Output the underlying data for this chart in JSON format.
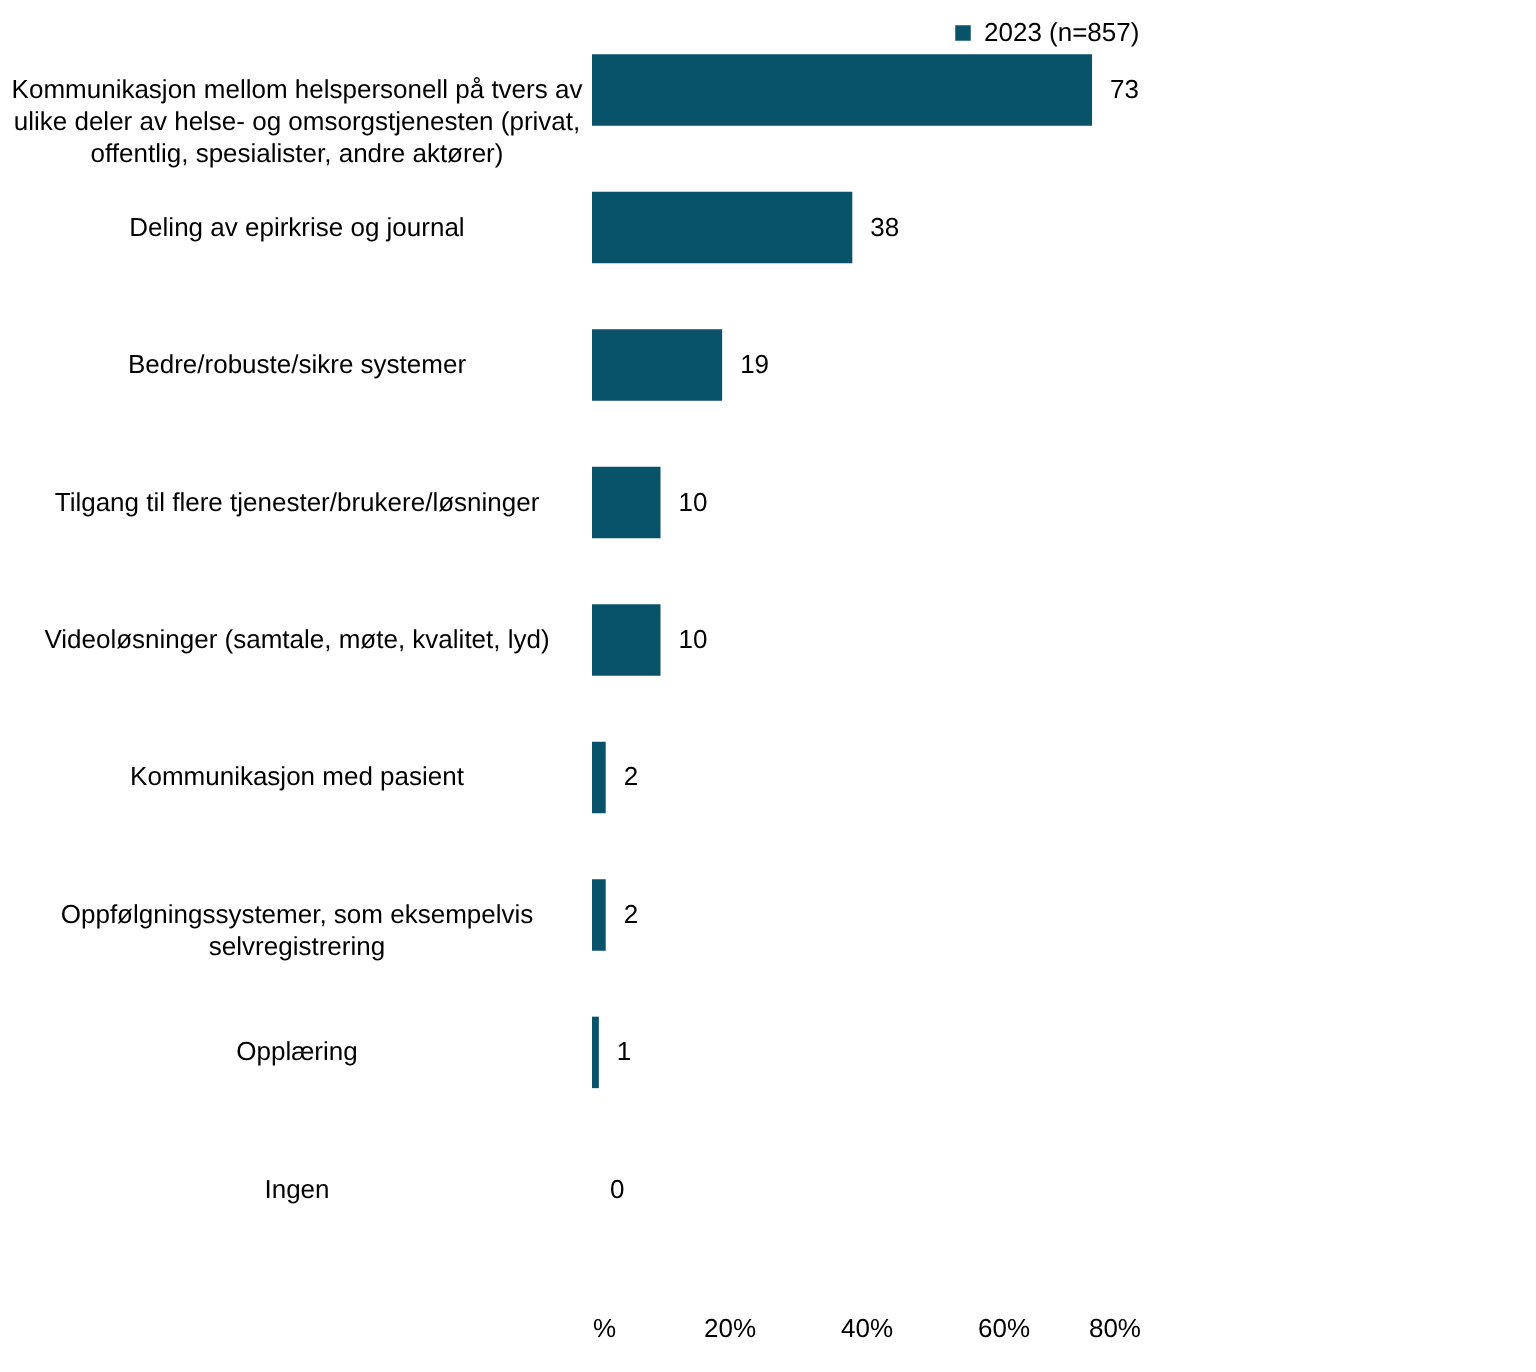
{
  "chart_data": {
    "type": "bar",
    "orientation": "horizontal",
    "categories": [
      "Kommunikasjon mellom helspersonell på tvers av ulike deler av helse- og omsorgstjenesten (privat, offentlig, spesialister, andre aktører)",
      "Deling av epirkrise og journal",
      "Bedre/robuste/sikre systemer",
      "Tilgang til flere tjenester/brukere/løsninger",
      "Videoløsninger (samtale, møte, kvalitet, lyd)",
      "Kommunikasjon med pasient",
      "Oppfølgningssystemer, som eksempelvis selvregistrering",
      "Opplæring",
      "Ingen"
    ],
    "series": [
      {
        "name": "2023 (n=857)",
        "color": "#08526a",
        "values": [
          73,
          38,
          19,
          10,
          10,
          2,
          2,
          1,
          0
        ]
      }
    ],
    "xlim": [
      0,
      80
    ],
    "xticks": [
      {
        "value": 0,
        "label": "%"
      },
      {
        "value": 20,
        "label": "20%"
      },
      {
        "value": 40,
        "label": "40%"
      },
      {
        "value": 60,
        "label": "60%"
      },
      {
        "value": 80,
        "label": "80%"
      }
    ],
    "data_labels": true,
    "legend": "right",
    "grid": false
  }
}
